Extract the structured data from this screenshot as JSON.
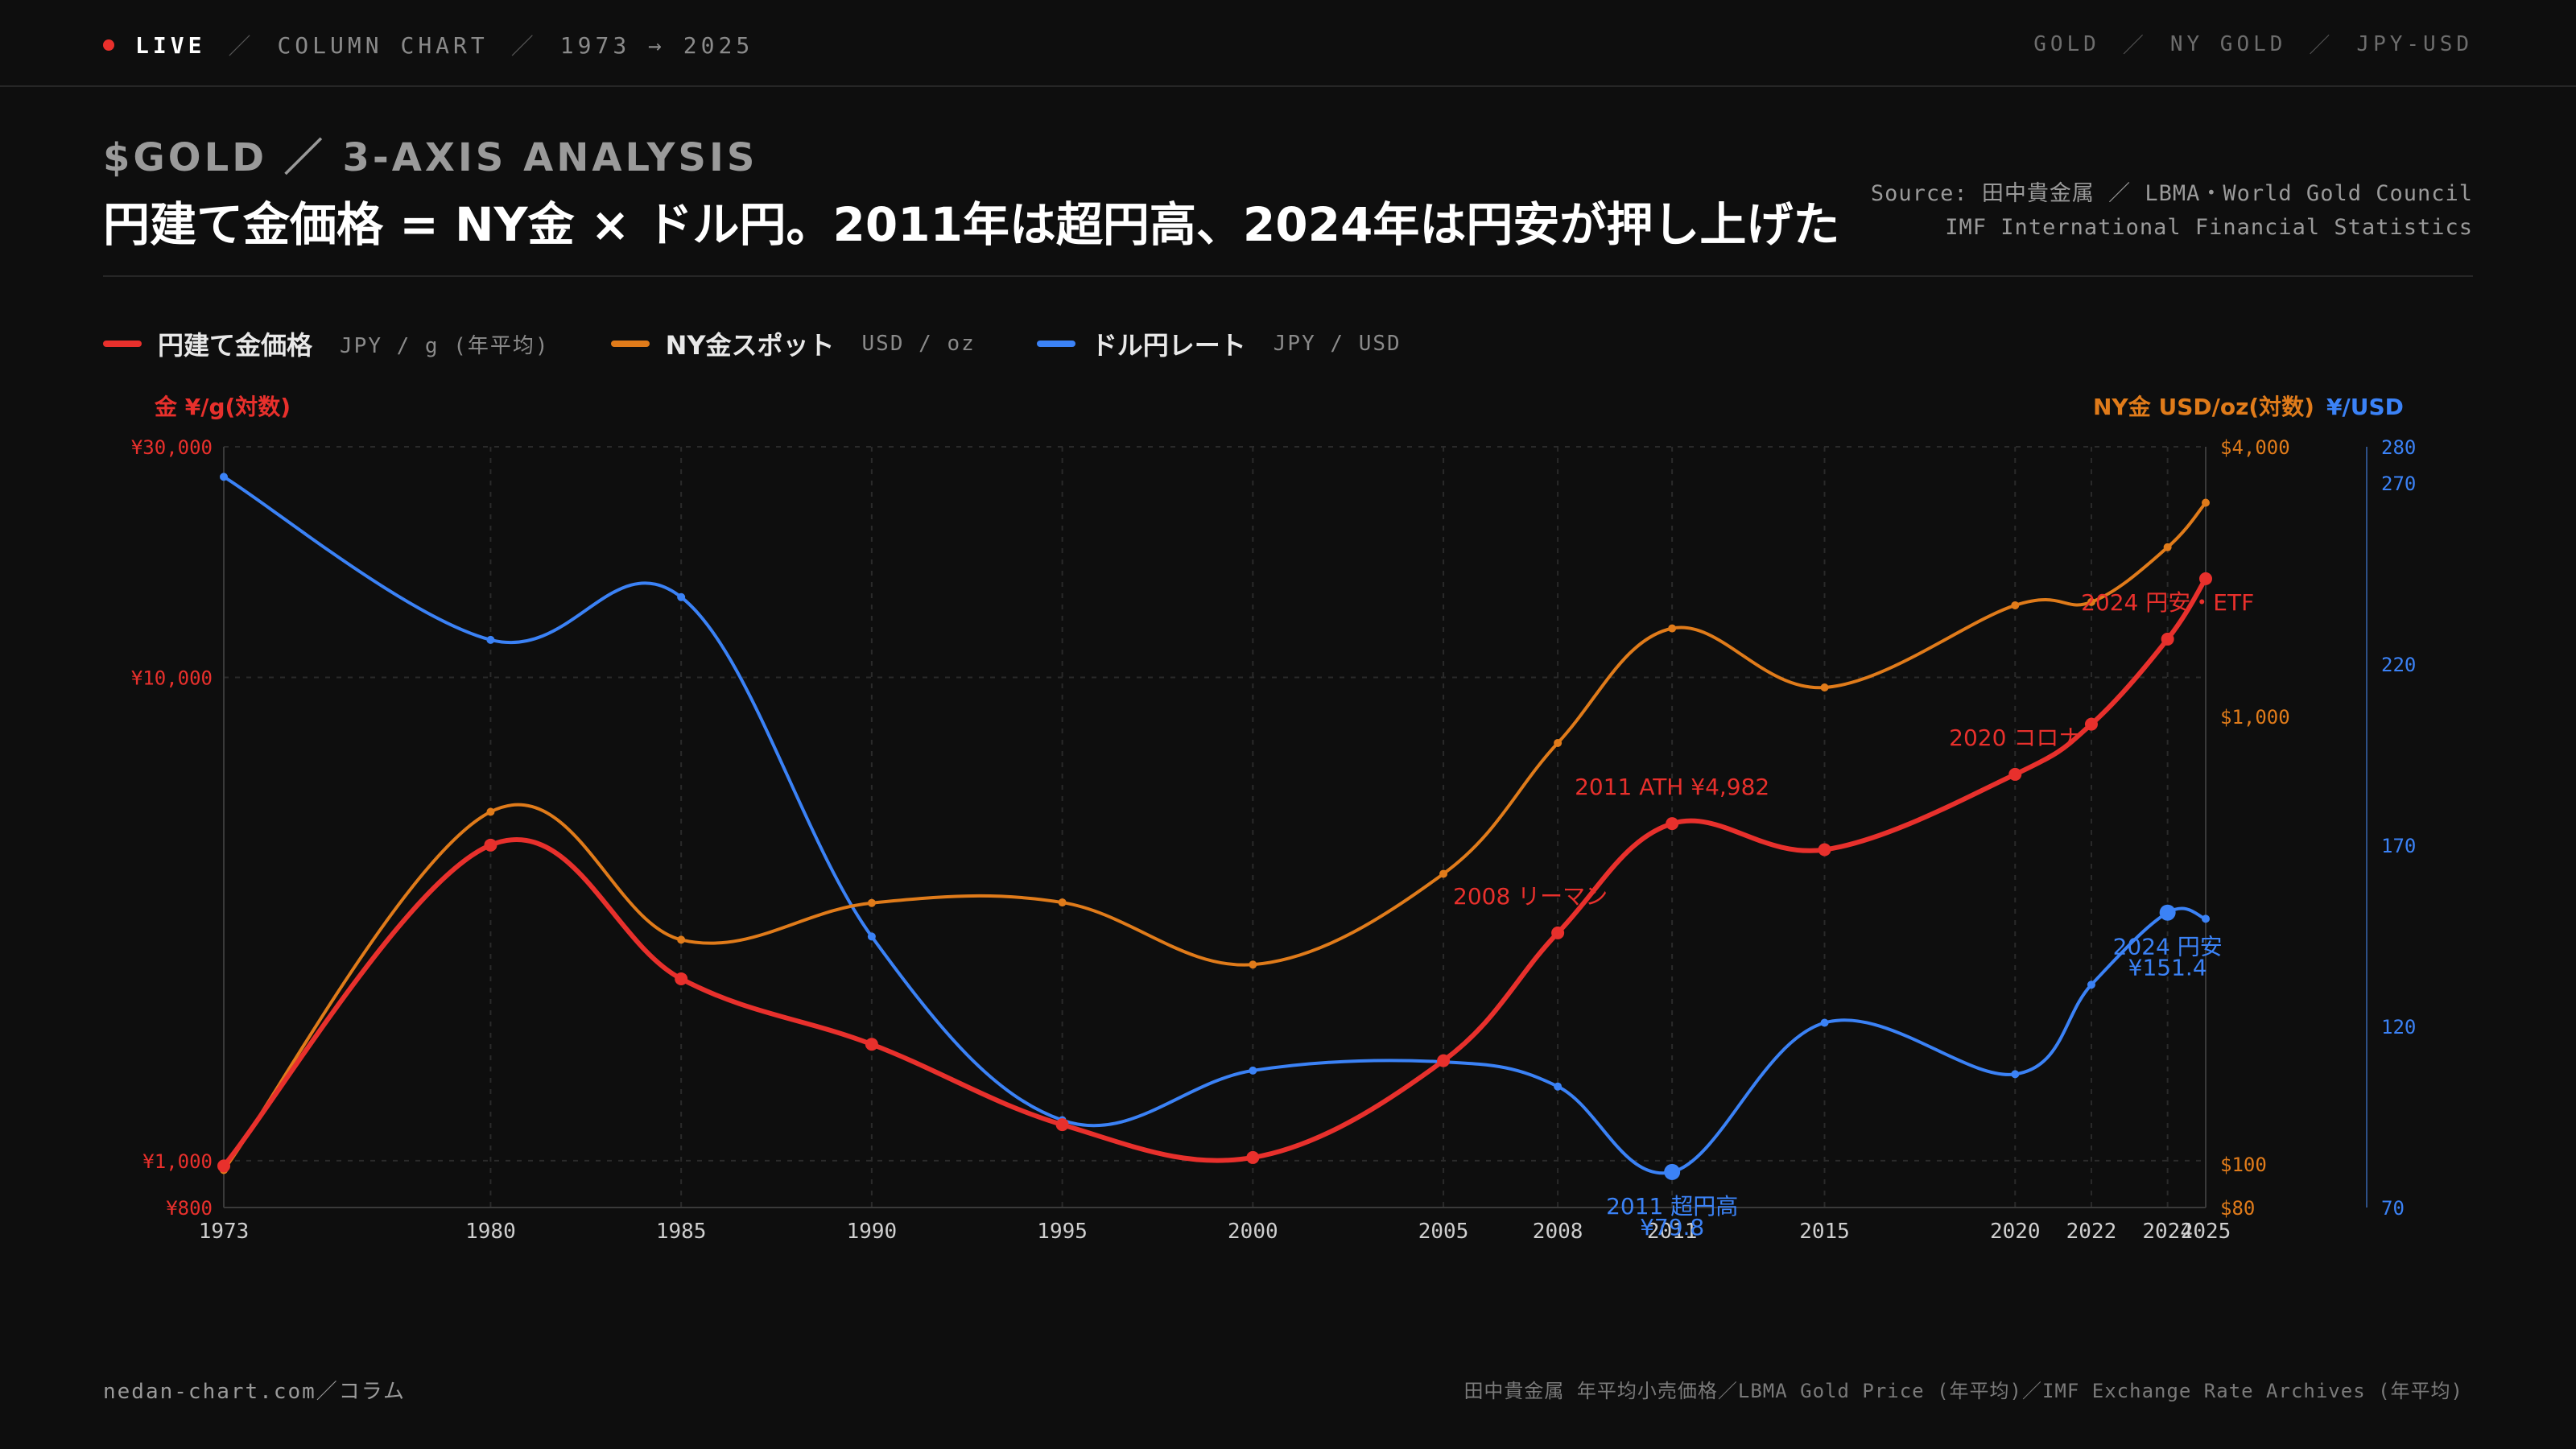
{
  "topbar": {
    "live": "LIVE",
    "kind": "COLUMN CHART",
    "range": "1973 → 2025",
    "tags": [
      "GOLD",
      "NY GOLD",
      "JPY-USD"
    ]
  },
  "header": {
    "kicker": "$GOLD ／ 3-AXIS ANALYSIS",
    "headline": "円建て金価格 = NY金 × ドル円。2011年は超円高、2024年は円安が押し上げた",
    "source_line1": "Source: 田中貴金属 ／ LBMA・World Gold Council",
    "source_line2": "IMF International Financial Statistics"
  },
  "legend": [
    {
      "label": "円建て金価格",
      "unit": "JPY / g (年平均)",
      "color": "#e8302c"
    },
    {
      "label": "NY金スポット",
      "unit": "USD / oz",
      "color": "#e07b1a"
    },
    {
      "label": "ドル円レート",
      "unit": "JPY / USD",
      "color": "#3b82f6"
    }
  ],
  "footer": {
    "left": "nedan-chart.com／コラム",
    "right": "田中貴金属 年平均小売価格／LBMA Gold Price (年平均)／IMF Exchange Rate Archives (年平均)"
  },
  "chart_data": {
    "type": "line",
    "x": [
      "1973",
      "1980",
      "1985",
      "1990",
      "1995",
      "2000",
      "2005",
      "2008",
      "2011",
      "2015",
      "2020",
      "2022",
      "2024",
      "2025"
    ],
    "axes": {
      "left": {
        "label": "金 ¥/g(対数)",
        "scale": "log",
        "range": [
          800,
          30000
        ],
        "ticks": [
          "¥800",
          "¥1,000",
          "¥10,000",
          "¥30,000"
        ],
        "color": "#e8302c"
      },
      "right1": {
        "label": "NY金 USD/oz(対数)",
        "scale": "log",
        "range": [
          80,
          4000
        ],
        "ticks": [
          "$80",
          "$100",
          "$1,000",
          "$4,000"
        ],
        "color": "#e07b1a"
      },
      "right2": {
        "label": "¥/USD",
        "scale": "linear",
        "range": [
          70,
          280
        ],
        "ticks": [
          "70",
          "120",
          "170",
          "220",
          "270",
          "280"
        ],
        "color": "#3b82f6"
      }
    },
    "series": [
      {
        "name": "円建て金価格",
        "axis": "left",
        "values": [
          975,
          4497,
          2378,
          1741,
          1187,
          1015,
          1610,
          2960,
          4982,
          4400,
          6300,
          8000,
          12000,
          16000
        ]
      },
      {
        "name": "NY金スポット",
        "axis": "right1",
        "values": [
          97,
          612,
          317,
          383,
          384,
          279,
          445,
          872,
          1572,
          1160,
          1770,
          1800,
          2386,
          3000
        ]
      },
      {
        "name": "ドル円レート",
        "axis": "right2",
        "values": [
          271.7,
          226.7,
          238.5,
          144.8,
          94.1,
          107.8,
          110.2,
          103.4,
          79.8,
          121.0,
          106.8,
          131.5,
          151.4,
          149.7
        ]
      }
    ],
    "annotations": [
      {
        "text": "2008 リーマン",
        "series": "円建て金価格",
        "x": "2008"
      },
      {
        "text": "2011 ATH ¥4,982",
        "series": "円建て金価格",
        "x": "2011"
      },
      {
        "text": "2020 コロナ",
        "series": "円建て金価格",
        "x": "2020"
      },
      {
        "text": "2024 円安・ETF",
        "series": "円建て金価格",
        "x": "2024"
      },
      {
        "text": "2011 超円高",
        "text2": "¥79.8",
        "series": "ドル円レート",
        "x": "2011"
      },
      {
        "text": "2024 円安",
        "text2": "¥151.4",
        "series": "ドル円レート",
        "x": "2024"
      }
    ],
    "grid": true
  }
}
